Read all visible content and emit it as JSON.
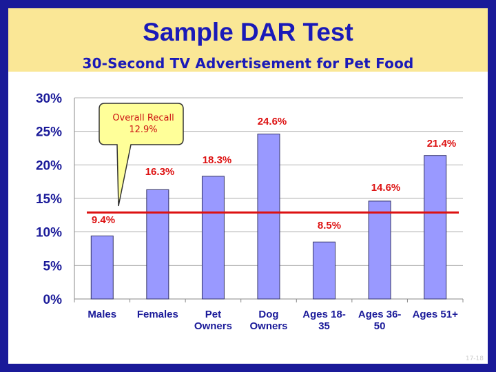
{
  "slide": {
    "title": "Sample DAR Test",
    "subtitle": "30-Second TV Advertisement for Pet Food",
    "page_number": "17-18"
  },
  "colors": {
    "border": "#1a1a99",
    "header_bg": "#fae796",
    "title": "#1a1ab8",
    "bar_fill": "#9999ff",
    "bar_stroke": "#333366",
    "axis_text": "#1a1a99",
    "data_label": "#dd1111",
    "reference_line": "#dd1111",
    "callout_bg": "#ffff99"
  },
  "chart_data": {
    "type": "bar",
    "title": "",
    "xlabel": "",
    "ylabel": "",
    "categories": [
      [
        "Males"
      ],
      [
        "Females"
      ],
      [
        "Pet",
        "Owners"
      ],
      [
        "Dog",
        "Owners"
      ],
      [
        "Ages 18-",
        "35"
      ],
      [
        "Ages 36-",
        "50"
      ],
      [
        "Ages 51+"
      ]
    ],
    "values": [
      9.4,
      16.3,
      18.3,
      24.6,
      8.5,
      14.6,
      21.4
    ],
    "value_labels": [
      "9.4%",
      "16.3%",
      "18.3%",
      "24.6%",
      "8.5%",
      "14.6%",
      "21.4%"
    ],
    "ylim": [
      0,
      30
    ],
    "yticks": [
      0,
      5,
      10,
      15,
      20,
      25,
      30
    ],
    "ytick_labels": [
      "0%",
      "5%",
      "10%",
      "15%",
      "20%",
      "25%",
      "30%"
    ],
    "grid": true,
    "legend": "none",
    "reference_line": {
      "value": 12.9
    },
    "annotation": {
      "lines": [
        "Overall Recall",
        "12.9%"
      ]
    }
  }
}
